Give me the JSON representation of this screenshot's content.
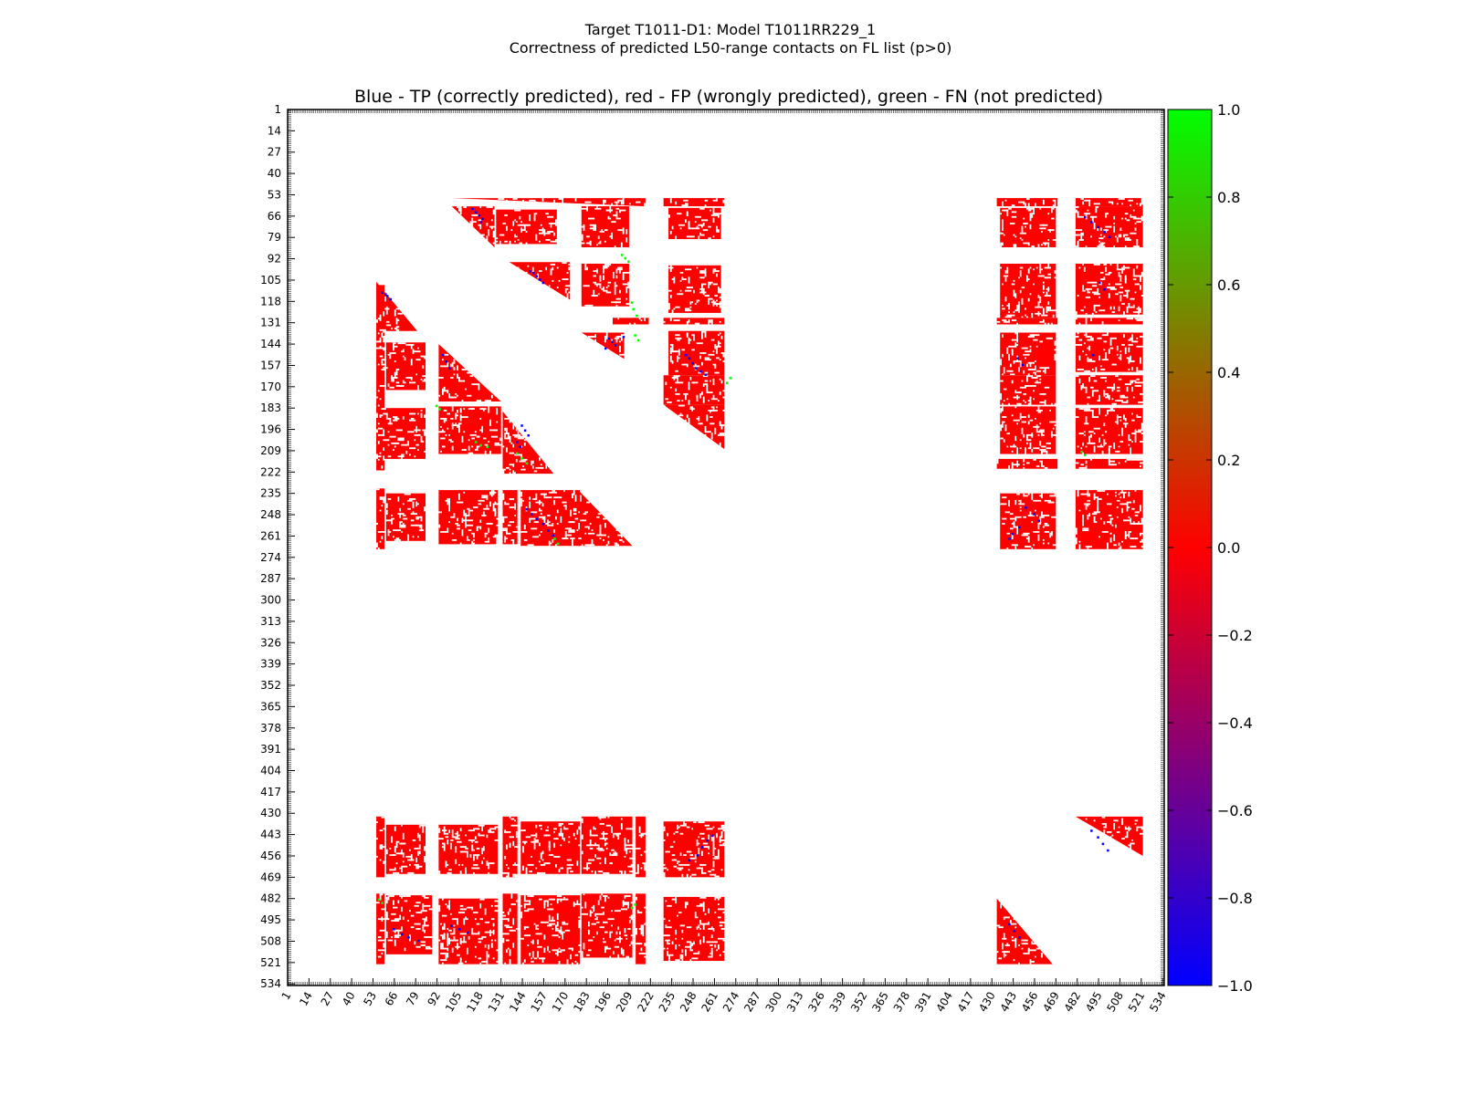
{
  "figure": {
    "suptitle_line1": "Target T1011-D1: Model T1011RR229_1",
    "suptitle_line2": "Correctness of predicted L50-range contacts on FL list (p>0)"
  },
  "chart_data": {
    "type": "heatmap",
    "title": "Blue - TP (correctly predicted), red - FP (wrongly predicted), green - FN (not predicted)",
    "xlabel": "",
    "ylabel": "",
    "xlim": [
      1,
      534
    ],
    "ylim": [
      534,
      1
    ],
    "tick_labels": [
      "1",
      "14",
      "27",
      "40",
      "53",
      "66",
      "79",
      "92",
      "105",
      "118",
      "131",
      "144",
      "157",
      "170",
      "183",
      "196",
      "209",
      "222",
      "235",
      "248",
      "261",
      "274",
      "287",
      "300",
      "313",
      "326",
      "339",
      "352",
      "365",
      "378",
      "391",
      "404",
      "417",
      "430",
      "443",
      "456",
      "469",
      "482",
      "495",
      "508",
      "521",
      "534"
    ],
    "colorbar": {
      "vmin": -1.0,
      "vmax": 1.0,
      "tick_labels": [
        "1.0",
        "0.8",
        "0.6",
        "0.4",
        "0.2",
        "0.0",
        "−0.2",
        "−0.4",
        "−0.6",
        "−0.8",
        "−1.0"
      ],
      "colors": {
        "low": "#0000ff",
        "mid": "#ff0000",
        "high": "#00ff00"
      }
    },
    "legend": {
      "tp": "#0000ff",
      "fp": "#ff0000",
      "fn": "#00ff00"
    },
    "fp_blocks": [
      {
        "r": [
          55,
          59
        ],
        "c": [
          101,
          218
        ],
        "tri": "upper"
      },
      {
        "r": [
          55,
          59
        ],
        "c": [
          230,
          266
        ]
      },
      {
        "r": [
          55,
          59
        ],
        "c": [
          433,
          469
        ]
      },
      {
        "r": [
          55,
          59
        ],
        "c": [
          481,
          521
        ]
      },
      {
        "r": [
          60,
          84
        ],
        "c": [
          101,
          126
        ],
        "tri": "upper"
      },
      {
        "r": [
          62,
          82
        ],
        "c": [
          128,
          164
        ]
      },
      {
        "r": [
          60,
          84
        ],
        "c": [
          180,
          208
        ]
      },
      {
        "r": [
          61,
          79
        ],
        "c": [
          233,
          264
        ]
      },
      {
        "r": [
          61,
          84
        ],
        "c": [
          435,
          468
        ]
      },
      {
        "r": [
          60,
          84
        ],
        "c": [
          481,
          521
        ]
      },
      {
        "r": [
          94,
          116
        ],
        "c": [
          136,
          172
        ],
        "tri": "upper"
      },
      {
        "r": [
          95,
          120
        ],
        "c": [
          180,
          208
        ]
      },
      {
        "r": [
          96,
          124
        ],
        "c": [
          233,
          264
        ]
      },
      {
        "r": [
          95,
          127
        ],
        "c": [
          435,
          468
        ]
      },
      {
        "r": [
          95,
          125
        ],
        "c": [
          481,
          521
        ]
      },
      {
        "r": [
          128,
          131
        ],
        "c": [
          199,
          220
        ]
      },
      {
        "r": [
          128,
          131
        ],
        "c": [
          230,
          266
        ]
      },
      {
        "r": [
          128,
          131
        ],
        "c": [
          433,
          469
        ]
      },
      {
        "r": [
          128,
          131
        ],
        "c": [
          481,
          521
        ]
      },
      {
        "r": [
          137,
          152
        ],
        "c": [
          180,
          205
        ],
        "tri": "upper"
      },
      {
        "r": [
          136,
          162
        ],
        "c": [
          233,
          266
        ]
      },
      {
        "r": [
          137,
          162
        ],
        "c": [
          435,
          468
        ]
      },
      {
        "r": [
          137,
          160
        ],
        "c": [
          481,
          521
        ]
      },
      {
        "r": [
          163,
          180
        ],
        "c": [
          230,
          266
        ]
      },
      {
        "r": [
          163,
          180
        ],
        "c": [
          435,
          468
        ]
      },
      {
        "r": [
          163,
          180
        ],
        "c": [
          481,
          521
        ]
      },
      {
        "r": [
          181,
          207
        ],
        "c": [
          230,
          266
        ],
        "tri": "upper"
      },
      {
        "r": [
          182,
          210
        ],
        "c": [
          435,
          468
        ]
      },
      {
        "r": [
          183,
          210
        ],
        "c": [
          481,
          521
        ]
      },
      {
        "r": [
          214,
          219
        ],
        "c": [
          433,
          469
        ]
      },
      {
        "r": [
          214,
          219
        ],
        "c": [
          481,
          521
        ]
      },
      {
        "r": [
          106,
          135
        ],
        "c": [
          55,
          79
        ],
        "tri": "lower"
      },
      {
        "r": [
          108,
          220
        ],
        "c": [
          55,
          59
        ]
      },
      {
        "r": [
          143,
          171
        ],
        "c": [
          61,
          84
        ]
      },
      {
        "r": [
          183,
          213
        ],
        "c": [
          55,
          84
        ]
      },
      {
        "r": [
          144,
          178
        ],
        "c": [
          93,
          130
        ],
        "tri": "lower"
      },
      {
        "r": [
          182,
          210
        ],
        "c": [
          93,
          130
        ]
      },
      {
        "r": [
          185,
          222
        ],
        "c": [
          132,
          162
        ],
        "tri": "lower"
      },
      {
        "r": [
          232,
          268
        ],
        "c": [
          55,
          59
        ]
      },
      {
        "r": [
          235,
          263
        ],
        "c": [
          61,
          84
        ]
      },
      {
        "r": [
          233,
          265
        ],
        "c": [
          93,
          128
        ]
      },
      {
        "r": [
          233,
          265
        ],
        "c": [
          132,
          140
        ]
      },
      {
        "r": [
          233,
          266
        ],
        "c": [
          143,
          178
        ]
      },
      {
        "r": [
          233,
          266
        ],
        "c": [
          178,
          210
        ],
        "tri": "lower"
      },
      {
        "r": [
          235,
          268
        ],
        "c": [
          435,
          468
        ]
      },
      {
        "r": [
          233,
          268
        ],
        "c": [
          481,
          521
        ]
      },
      {
        "r": [
          432,
          468
        ],
        "c": [
          55,
          59
        ]
      },
      {
        "r": [
          437,
          466
        ],
        "c": [
          61,
          84
        ]
      },
      {
        "r": [
          437,
          466
        ],
        "c": [
          93,
          128
        ]
      },
      {
        "r": [
          432,
          468
        ],
        "c": [
          132,
          140
        ]
      },
      {
        "r": [
          435,
          466
        ],
        "c": [
          143,
          178
        ]
      },
      {
        "r": [
          432,
          466
        ],
        "c": [
          180,
          210
        ]
      },
      {
        "r": [
          432,
          468
        ],
        "c": [
          213,
          218
        ]
      },
      {
        "r": [
          435,
          468
        ],
        "c": [
          230,
          266
        ]
      },
      {
        "r": [
          432,
          455
        ],
        "c": [
          481,
          521
        ],
        "tri": "upper"
      },
      {
        "r": [
          479,
          521
        ],
        "c": [
          55,
          59
        ]
      },
      {
        "r": [
          480,
          515
        ],
        "c": [
          61,
          88
        ]
      },
      {
        "r": [
          482,
          521
        ],
        "c": [
          93,
          128
        ]
      },
      {
        "r": [
          479,
          521
        ],
        "c": [
          132,
          140
        ]
      },
      {
        "r": [
          480,
          521
        ],
        "c": [
          143,
          178
        ]
      },
      {
        "r": [
          479,
          517
        ],
        "c": [
          180,
          210
        ]
      },
      {
        "r": [
          479,
          521
        ],
        "c": [
          213,
          218
        ]
      },
      {
        "r": [
          481,
          519
        ],
        "c": [
          230,
          266
        ]
      },
      {
        "r": [
          482,
          521
        ],
        "c": [
          433,
          466
        ],
        "tri": "lower"
      }
    ],
    "tp_points": [
      [
        61,
        113
      ],
      [
        63,
        115
      ],
      [
        65,
        117
      ],
      [
        67,
        119
      ],
      [
        69,
        118
      ],
      [
        100,
        150
      ],
      [
        102,
        152
      ],
      [
        104,
        154
      ],
      [
        106,
        156
      ],
      [
        99,
        148
      ],
      [
        140,
        196
      ],
      [
        142,
        198
      ],
      [
        144,
        200
      ],
      [
        146,
        194
      ],
      [
        139,
        205
      ],
      [
        150,
        243
      ],
      [
        152,
        245
      ],
      [
        155,
        247
      ],
      [
        158,
        249
      ],
      [
        160,
        252
      ],
      [
        162,
        255
      ],
      [
        112,
        58
      ],
      [
        114,
        61
      ],
      [
        116,
        63
      ],
      [
        113,
        60
      ],
      [
        150,
        95
      ],
      [
        154,
        97
      ],
      [
        158,
        99
      ],
      [
        193,
        143
      ],
      [
        196,
        145
      ],
      [
        199,
        147
      ],
      [
        203,
        140
      ],
      [
        206,
        142
      ],
      [
        244,
        146
      ],
      [
        247,
        149
      ],
      [
        250,
        152
      ],
      [
        253,
        156
      ],
      [
        257,
        159
      ],
      [
        260,
        162
      ],
      [
        243,
        450
      ],
      [
        247,
        455
      ],
      [
        251,
        458
      ],
      [
        255,
        446
      ],
      [
        259,
        442
      ],
      [
        262,
        440
      ],
      [
        66,
        486
      ],
      [
        69,
        490
      ],
      [
        72,
        494
      ],
      [
        75,
        498
      ],
      [
        78,
        501
      ],
      [
        106,
        495
      ],
      [
        110,
        498
      ],
      [
        152,
        445
      ],
      [
        156,
        448
      ],
      [
        150,
        491
      ],
      [
        450,
        253
      ],
      [
        446,
        256
      ],
      [
        443,
        259
      ],
      [
        455,
        250
      ],
      [
        458,
        245
      ],
      [
        500,
        65
      ],
      [
        503,
        70
      ],
      [
        505,
        74
      ],
      [
        507,
        80
      ],
      [
        498,
        100
      ],
      [
        500,
        105
      ],
      [
        502,
        110
      ],
      [
        497,
        440
      ],
      [
        501,
        443
      ],
      [
        505,
        446
      ],
      [
        440,
        490
      ],
      [
        444,
        494
      ],
      [
        448,
        497
      ],
      [
        452,
        500
      ]
    ],
    "fn_points": [
      [
        89,
        204
      ],
      [
        91,
        206
      ],
      [
        93,
        208
      ],
      [
        118,
        210
      ],
      [
        122,
        211
      ],
      [
        126,
        213
      ],
      [
        138,
        212
      ],
      [
        141,
        214
      ],
      [
        164,
        270
      ],
      [
        167,
        268
      ],
      [
        181,
        91
      ],
      [
        183,
        93
      ],
      [
        203,
        115
      ],
      [
        205,
        118
      ],
      [
        206,
        122
      ],
      [
        210,
        140
      ],
      [
        213,
        143
      ],
      [
        216,
        146
      ],
      [
        262,
        163
      ],
      [
        265,
        165
      ],
      [
        485,
        212
      ],
      [
        487,
        210
      ],
      [
        209,
        484
      ],
      [
        211,
        486
      ],
      [
        482,
        56
      ],
      [
        484,
        58
      ]
    ]
  }
}
